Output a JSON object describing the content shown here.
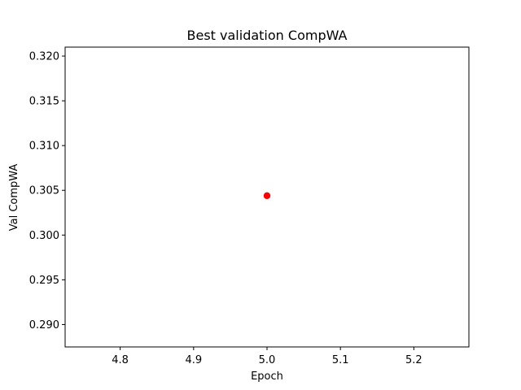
{
  "chart_data": {
    "type": "scatter",
    "title": "Best validation CompWA",
    "xlabel": "Epoch",
    "ylabel": "Val CompWA",
    "xlim": [
      4.725,
      5.275
    ],
    "ylim": [
      0.2875,
      0.321
    ],
    "x_ticks": [
      "4.8",
      "4.9",
      "5.0",
      "5.1",
      "5.2"
    ],
    "y_ticks": [
      "0.290",
      "0.295",
      "0.300",
      "0.305",
      "0.310",
      "0.315",
      "0.320"
    ],
    "grid": false,
    "series": [
      {
        "color": "#ff0000",
        "points": [
          {
            "x": 5.0,
            "y": 0.3044
          }
        ]
      }
    ]
  }
}
